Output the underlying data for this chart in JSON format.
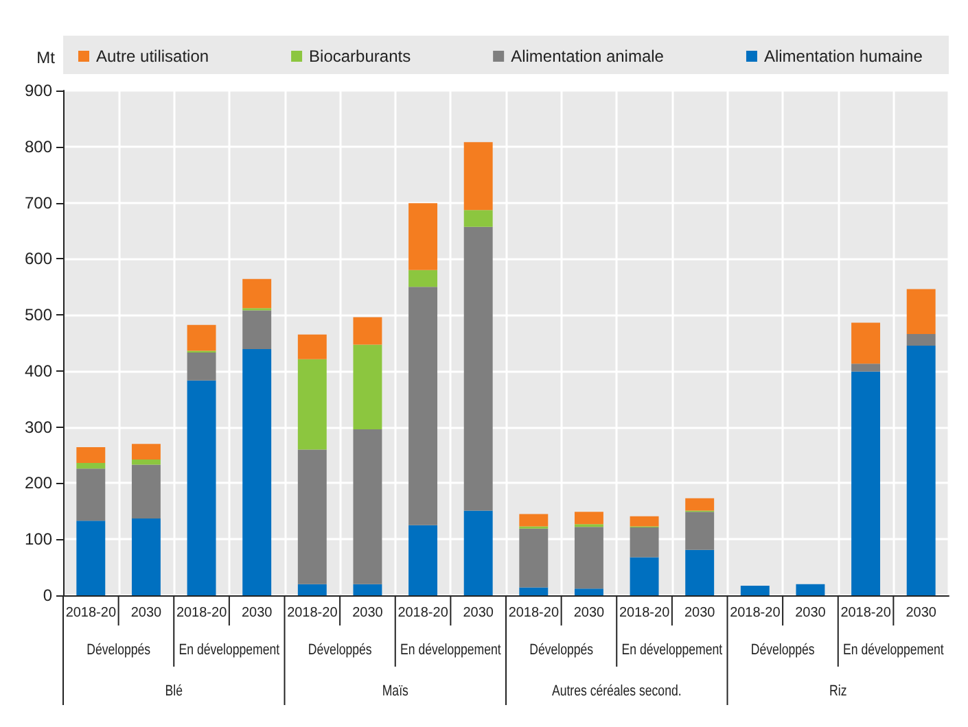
{
  "chart_data": {
    "type": "bar",
    "stacked": true,
    "ylabel": "Mt",
    "categories": [
      "2018-20",
      "2030",
      "2018-20",
      "2030",
      "2018-20",
      "2030",
      "2018-20",
      "2030",
      "2018-20",
      "2030",
      "2018-20",
      "2030",
      "2018-20",
      "2030",
      "2018-20",
      "2030"
    ],
    "series": [
      {
        "name": "Alimentation humaine",
        "color": "#0070c0",
        "values": [
          133,
          137,
          383,
          439,
          20,
          20,
          125,
          151,
          14,
          12,
          68,
          81,
          17,
          20,
          399,
          445
        ]
      },
      {
        "name": "Alimentation animale",
        "color": "#7f7f7f",
        "values": [
          93,
          96,
          50,
          69,
          240,
          276,
          425,
          506,
          105,
          110,
          53,
          68,
          0,
          0,
          14,
          21
        ]
      },
      {
        "name": "Biocarburants",
        "color": "#8cc63f",
        "values": [
          10,
          9,
          3,
          4,
          161,
          151,
          30,
          30,
          4,
          5,
          2,
          2,
          0,
          0,
          0,
          0
        ]
      },
      {
        "name": "Autre utilisation",
        "color": "#f47d20",
        "values": [
          28,
          28,
          46,
          52,
          44,
          49,
          119,
          121,
          22,
          22,
          18,
          22,
          0,
          0,
          73,
          80
        ]
      }
    ],
    "annotations": [
      "Développés",
      "En développement",
      "Développés",
      "En développement",
      "Développés",
      "En développement",
      "Développés",
      "En développement",
      "Blé",
      "Maïs",
      "Autres céréales second.",
      "Riz"
    ],
    "ylim": [
      0,
      900
    ],
    "yticks": [
      0,
      100,
      200,
      300,
      400,
      500,
      600,
      700,
      800,
      900
    ],
    "grid": true,
    "legend": "top"
  }
}
